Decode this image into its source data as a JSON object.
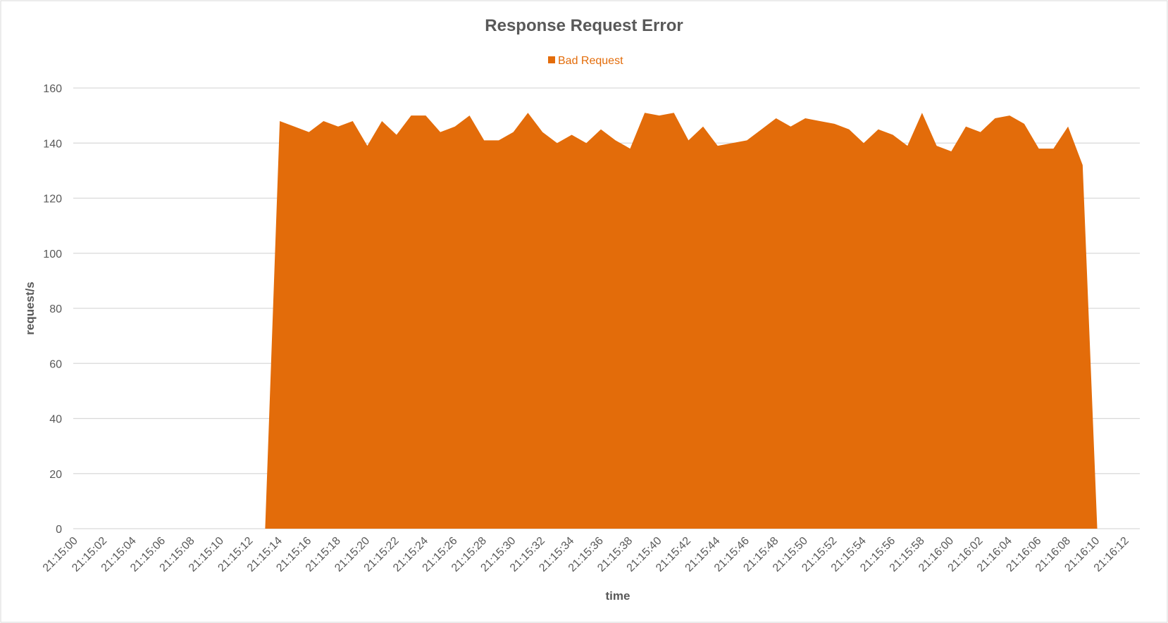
{
  "chart_data": {
    "type": "area",
    "title": "Response Request Error",
    "x_label": "time",
    "y_label": "request/s",
    "categories": [
      "21:15:00",
      null,
      "21:15:02",
      null,
      "21:15:04",
      null,
      "21:15:06",
      null,
      "21:15:08",
      null,
      "21:15:10",
      null,
      "21:15:12",
      null,
      "21:15:14",
      null,
      "21:15:16",
      null,
      "21:15:18",
      null,
      "21:15:20",
      null,
      "21:15:22",
      null,
      "21:15:24",
      null,
      "21:15:26",
      null,
      "21:15:28",
      null,
      "21:15:30",
      null,
      "21:15:32",
      null,
      "21:15:34",
      null,
      "21:15:36",
      null,
      "21:15:38",
      null,
      "21:15:40",
      null,
      "21:15:42",
      null,
      "21:15:44",
      null,
      "21:15:46",
      null,
      "21:15:48",
      null,
      "21:15:50",
      null,
      "21:15:52",
      null,
      "21:15:54",
      null,
      "21:15:56",
      null,
      "21:15:58",
      null,
      "21:16:00",
      null,
      "21:16:02",
      null,
      "21:16:04",
      null,
      "21:16:06",
      null,
      "21:16:08",
      null,
      "21:16:10",
      null,
      "21:16:12"
    ],
    "series": [
      {
        "name": "Bad Request",
        "color": "#e36c0a",
        "values": [
          null,
          null,
          null,
          null,
          null,
          null,
          null,
          null,
          null,
          null,
          null,
          null,
          null,
          0,
          148,
          146,
          144,
          148,
          146,
          148,
          139,
          148,
          143,
          150,
          150,
          144,
          146,
          150,
          141,
          141,
          144,
          151,
          144,
          140,
          143,
          140,
          145,
          141,
          138,
          151,
          150,
          151,
          141,
          146,
          139,
          140,
          141,
          145,
          149,
          146,
          149,
          148,
          147,
          145,
          140,
          145,
          143,
          139,
          151,
          139,
          137,
          146,
          144,
          149,
          150,
          147,
          138,
          138,
          146,
          132,
          0,
          null,
          null
        ]
      }
    ],
    "ylim": [
      0,
      160
    ],
    "yticks": [
      0,
      20,
      40,
      60,
      80,
      100,
      120,
      140,
      160
    ],
    "grid": true,
    "legend": "top"
  }
}
